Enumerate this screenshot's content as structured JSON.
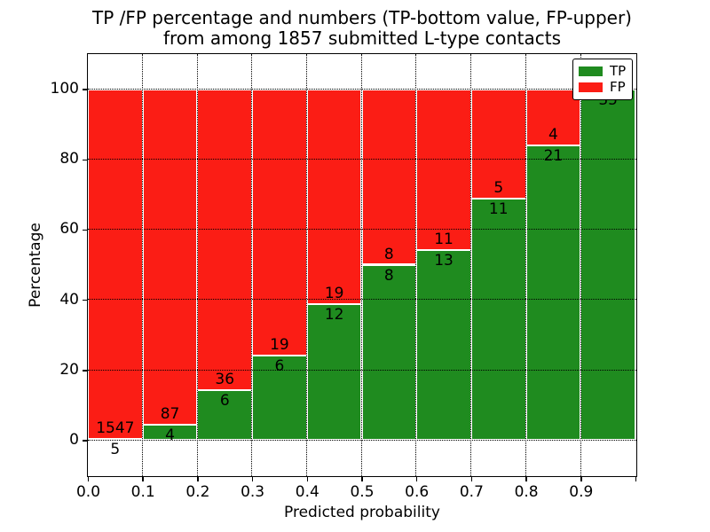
{
  "chart_data": {
    "type": "bar",
    "stacked": true,
    "orientation": "vertical",
    "title_line1": "TP /FP percentage and numbers (TP-bottom value, FP-upper)",
    "title_line2": "from among 1857 submitted L-type contacts",
    "xlabel": "Predicted probability",
    "ylabel": "Percentage",
    "xlim": [
      0.0,
      1.0
    ],
    "ylim": [
      -10,
      110
    ],
    "grid": {
      "style": "dotted",
      "color": "#000000",
      "x_on": true,
      "y_on": true
    },
    "x_ticks": [
      {
        "value": 0.0,
        "label": "0.0"
      },
      {
        "value": 0.1,
        "label": "0.1"
      },
      {
        "value": 0.2,
        "label": "0.2"
      },
      {
        "value": 0.3,
        "label": "0.3"
      },
      {
        "value": 0.4,
        "label": "0.4"
      },
      {
        "value": 0.5,
        "label": "0.5"
      },
      {
        "value": 0.6,
        "label": "0.6"
      },
      {
        "value": 0.7,
        "label": "0.7"
      },
      {
        "value": 0.8,
        "label": "0.8"
      },
      {
        "value": 0.9,
        "label": "0.9"
      },
      {
        "value": 1.0,
        "label": ""
      }
    ],
    "y_ticks": [
      {
        "value": 0,
        "label": "0"
      },
      {
        "value": 20,
        "label": "20"
      },
      {
        "value": 40,
        "label": "40"
      },
      {
        "value": 60,
        "label": "60"
      },
      {
        "value": 80,
        "label": "80"
      },
      {
        "value": 100,
        "label": "100"
      }
    ],
    "series": [
      {
        "name": "TP",
        "color": "#1f8b1f"
      },
      {
        "name": "FP",
        "color": "#fb1d15"
      }
    ],
    "bins": [
      {
        "range": [
          0.0,
          0.1
        ],
        "tp": 5,
        "fp": 1547
      },
      {
        "range": [
          0.1,
          0.2
        ],
        "tp": 4,
        "fp": 87
      },
      {
        "range": [
          0.2,
          0.3
        ],
        "tp": 6,
        "fp": 36
      },
      {
        "range": [
          0.3,
          0.4
        ],
        "tp": 6,
        "fp": 19
      },
      {
        "range": [
          0.4,
          0.5
        ],
        "tp": 12,
        "fp": 19
      },
      {
        "range": [
          0.5,
          0.6
        ],
        "tp": 8,
        "fp": 8
      },
      {
        "range": [
          0.6,
          0.7
        ],
        "tp": 13,
        "fp": 11
      },
      {
        "range": [
          0.7,
          0.8
        ],
        "tp": 11,
        "fp": 5
      },
      {
        "range": [
          0.8,
          0.9
        ],
        "tp": 21,
        "fp": 4
      },
      {
        "range": [
          0.9,
          1.0
        ],
        "tp": 35,
        "fp": 0
      }
    ],
    "legend": {
      "position": "upper-right",
      "entries": [
        {
          "label": "TP",
          "color": "#1f8b1f"
        },
        {
          "label": "FP",
          "color": "#fb1d15"
        }
      ]
    }
  }
}
